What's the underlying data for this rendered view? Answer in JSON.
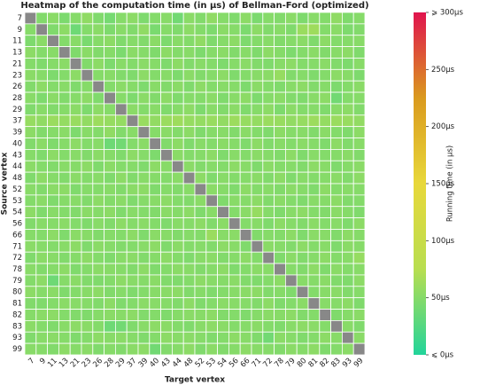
{
  "chart_data": {
    "type": "heatmap",
    "title": "Heatmap of the computation time (in μs) of Bellman-Ford (optimized)",
    "x_label": "Target vertex",
    "y_label": "Source vertex",
    "colorbar_label": "Running time (in μs)",
    "x": [
      "7",
      "9",
      "11",
      "13",
      "21",
      "23",
      "26",
      "28",
      "29",
      "37",
      "39",
      "40",
      "43",
      "44",
      "48",
      "52",
      "53",
      "54",
      "56",
      "66",
      "71",
      "72",
      "78",
      "79",
      "80",
      "81",
      "82",
      "83",
      "93",
      "99"
    ],
    "y": [
      "7",
      "9",
      "11",
      "13",
      "21",
      "23",
      "26",
      "28",
      "29",
      "37",
      "39",
      "40",
      "43",
      "44",
      "48",
      "52",
      "53",
      "54",
      "56",
      "66",
      "71",
      "72",
      "78",
      "79",
      "80",
      "81",
      "82",
      "83",
      "93",
      "99"
    ],
    "zlim": [
      0,
      300
    ],
    "zticks": [
      {
        "value": 0,
        "label": "⩽ 0μs"
      },
      {
        "value": 50,
        "label": "50μs"
      },
      {
        "value": 100,
        "label": "100μs"
      },
      {
        "value": 150,
        "label": "150μs"
      },
      {
        "value": 200,
        "label": "200μs"
      },
      {
        "value": 250,
        "label": "250μs"
      },
      {
        "value": 300,
        "label": "⩾ 300μs"
      }
    ],
    "colors": [
      "#22d49a",
      "#b8de50",
      "#e8d83a",
      "#da9a1e",
      "#e0144e"
    ],
    "null_color": "#888888",
    "values": [
      [
        null,
        48,
        52,
        45,
        50,
        55,
        47,
        42,
        50,
        53,
        46,
        49,
        51,
        40,
        52,
        48,
        55,
        50,
        47,
        53,
        45,
        50,
        48,
        52,
        46,
        51,
        49,
        55,
        47,
        50
      ],
      [
        50,
        null,
        47,
        53,
        38,
        49,
        52,
        46,
        51,
        48,
        55,
        44,
        50,
        47,
        53,
        49,
        46,
        52,
        50,
        45,
        53,
        48,
        51,
        47,
        60,
        62,
        49,
        52,
        46,
        48
      ],
      [
        46,
        52,
        null,
        49,
        51,
        44,
        50,
        53,
        47,
        50,
        48,
        52,
        46,
        51,
        49,
        55,
        47,
        50,
        53,
        46,
        49,
        51,
        48,
        50,
        52,
        47,
        53,
        49,
        50,
        51
      ],
      [
        53,
        49,
        51,
        null,
        47,
        52,
        48,
        50,
        45,
        52,
        50,
        47,
        53,
        49,
        51,
        46,
        50,
        52,
        48,
        51,
        47,
        53,
        50,
        46,
        49,
        52,
        48,
        51,
        53,
        47
      ],
      [
        49,
        47,
        50,
        52,
        null,
        48,
        53,
        46,
        51,
        49,
        52,
        50,
        47,
        53,
        48,
        51,
        49,
        46,
        50,
        52,
        48,
        47,
        51,
        53,
        49,
        50,
        52,
        48,
        46,
        51
      ],
      [
        52,
        50,
        46,
        49,
        53,
        null,
        50,
        51,
        48,
        47,
        53,
        49,
        51,
        46,
        52,
        48,
        50,
        53,
        47,
        49,
        51,
        52,
        58,
        48,
        50,
        47,
        49,
        53,
        51,
        46
      ],
      [
        48,
        53,
        49,
        51,
        47,
        50,
        null,
        49,
        52,
        50,
        46,
        51,
        48,
        52,
        47,
        53,
        49,
        51,
        50,
        46,
        52,
        49,
        47,
        51,
        53,
        48,
        50,
        46,
        49,
        52
      ],
      [
        51,
        46,
        52,
        48,
        50,
        53,
        47,
        null,
        50,
        46,
        52,
        48,
        53,
        47,
        50,
        49,
        52,
        47,
        51,
        53,
        46,
        50,
        52,
        48,
        47,
        51,
        53,
        40,
        49,
        50
      ],
      [
        47,
        51,
        48,
        50,
        52,
        46,
        53,
        50,
        null,
        52,
        49,
        51,
        47,
        50,
        53,
        46,
        51,
        48,
        52,
        47,
        50,
        53,
        46,
        52,
        49,
        50,
        47,
        51,
        53,
        48
      ],
      [
        58,
        55,
        60,
        57,
        59,
        56,
        61,
        58,
        57,
        null,
        59,
        56,
        60,
        62,
        58,
        57,
        59,
        56,
        61,
        58,
        57,
        60,
        59,
        56,
        58,
        61,
        57,
        60,
        59,
        56
      ],
      [
        53,
        48,
        50,
        52,
        46,
        51,
        49,
        55,
        48,
        51,
        null,
        50,
        52,
        49,
        53,
        47,
        50,
        51,
        48,
        52,
        49,
        47,
        53,
        50,
        51,
        48,
        52,
        49,
        47,
        53
      ],
      [
        48,
        52,
        47,
        50,
        53,
        49,
        51,
        38,
        40,
        49,
        52,
        null,
        48,
        53,
        47,
        51,
        49,
        52,
        50,
        47,
        53,
        48,
        51,
        49,
        52,
        50,
        47,
        53,
        48,
        51
      ],
      [
        50,
        47,
        53,
        49,
        51,
        48,
        52,
        50,
        47,
        53,
        50,
        46,
        null,
        52,
        49,
        50,
        53,
        47,
        51,
        49,
        52,
        50,
        48,
        53,
        47,
        51,
        49,
        50,
        52,
        48
      ],
      [
        52,
        49,
        48,
        51,
        50,
        53,
        47,
        52,
        49,
        50,
        47,
        53,
        51,
        null,
        52,
        48,
        50,
        49,
        53,
        51,
        47,
        52,
        49,
        50,
        48,
        53,
        51,
        47,
        50,
        52
      ],
      [
        47,
        53,
        50,
        48,
        52,
        49,
        51,
        47,
        53,
        48,
        51,
        50,
        49,
        52,
        null,
        53,
        47,
        51,
        49,
        50,
        52,
        48,
        53,
        47,
        51,
        49,
        50,
        52,
        48,
        53
      ],
      [
        51,
        48,
        52,
        53,
        47,
        50,
        49,
        51,
        48,
        52,
        53,
        47,
        50,
        48,
        51,
        null,
        52,
        50,
        47,
        53,
        49,
        51,
        48,
        52,
        50,
        47,
        53,
        49,
        51,
        50
      ],
      [
        49,
        52,
        47,
        50,
        51,
        48,
        53,
        49,
        52,
        47,
        50,
        51,
        53,
        49,
        48,
        52,
        null,
        47,
        51,
        50,
        53,
        48,
        52,
        49,
        47,
        51,
        50,
        53,
        48,
        49
      ],
      [
        53,
        47,
        51,
        49,
        48,
        52,
        50,
        53,
        47,
        51,
        49,
        48,
        52,
        50,
        53,
        47,
        51,
        null,
        49,
        52,
        58,
        50,
        47,
        51,
        53,
        49,
        48,
        52,
        50,
        47
      ],
      [
        48,
        51,
        50,
        52,
        49,
        47,
        51,
        48,
        53,
        50,
        52,
        49,
        47,
        51,
        50,
        53,
        48,
        52,
        null,
        49,
        51,
        47,
        53,
        50,
        48,
        52,
        49,
        51,
        47,
        53
      ],
      [
        50,
        49,
        53,
        47,
        52,
        51,
        48,
        50,
        49,
        53,
        47,
        52,
        51,
        48,
        50,
        49,
        60,
        51,
        52,
        null,
        48,
        50,
        49,
        53,
        47,
        52,
        51,
        48,
        53,
        50
      ],
      [
        52,
        50,
        49,
        51,
        53,
        47,
        52,
        50,
        48,
        49,
        51,
        53,
        47,
        52,
        49,
        50,
        48,
        53,
        51,
        47,
        null,
        52,
        50,
        48,
        53,
        49,
        51,
        47,
        52,
        50
      ],
      [
        47,
        52,
        51,
        48,
        50,
        53,
        49,
        47,
        51,
        52,
        48,
        50,
        53,
        49,
        47,
        51,
        52,
        48,
        50,
        53,
        49,
        null,
        47,
        52,
        48,
        50,
        53,
        49,
        51,
        58
      ],
      [
        51,
        48,
        50,
        53,
        47,
        49,
        52,
        51,
        50,
        48,
        53,
        47,
        49,
        52,
        51,
        48,
        50,
        53,
        47,
        49,
        52,
        51,
        null,
        50,
        48,
        53,
        47,
        52,
        49,
        51
      ],
      [
        49,
        53,
        38,
        50,
        52,
        48,
        47,
        49,
        53,
        51,
        50,
        52,
        48,
        47,
        49,
        53,
        51,
        50,
        52,
        48,
        47,
        49,
        53,
        null,
        51,
        50,
        52,
        48,
        47,
        53
      ],
      [
        53,
        50,
        52,
        47,
        49,
        51,
        53,
        48,
        50,
        47,
        49,
        51,
        52,
        53,
        48,
        50,
        47,
        49,
        51,
        52,
        53,
        48,
        50,
        47,
        null,
        49,
        51,
        52,
        48,
        50
      ],
      [
        48,
        47,
        49,
        52,
        51,
        50,
        48,
        53,
        47,
        49,
        52,
        51,
        50,
        48,
        53,
        47,
        49,
        52,
        51,
        50,
        48,
        53,
        47,
        49,
        52,
        null,
        51,
        50,
        53,
        47
      ],
      [
        50,
        52,
        53,
        49,
        48,
        47,
        50,
        52,
        51,
        53,
        48,
        49,
        47,
        50,
        52,
        51,
        53,
        48,
        49,
        47,
        50,
        52,
        51,
        53,
        48,
        49,
        null,
        47,
        50,
        52
      ],
      [
        52,
        49,
        47,
        51,
        53,
        52,
        49,
        38,
        40,
        47,
        51,
        53,
        52,
        49,
        47,
        51,
        53,
        52,
        49,
        50,
        52,
        49,
        47,
        51,
        53,
        52,
        49,
        null,
        51,
        47
      ],
      [
        47,
        51,
        52,
        50,
        47,
        49,
        53,
        51,
        52,
        50,
        47,
        49,
        53,
        51,
        52,
        50,
        47,
        49,
        53,
        51,
        47,
        40,
        52,
        50,
        47,
        49,
        53,
        51,
        null,
        52
      ],
      [
        51,
        50,
        48,
        53,
        50,
        52,
        47,
        50,
        48,
        52,
        53,
        40,
        48,
        50,
        53,
        47,
        52,
        48,
        50,
        53,
        51,
        50,
        48,
        52,
        50,
        53,
        47,
        49,
        52,
        null
      ]
    ]
  }
}
